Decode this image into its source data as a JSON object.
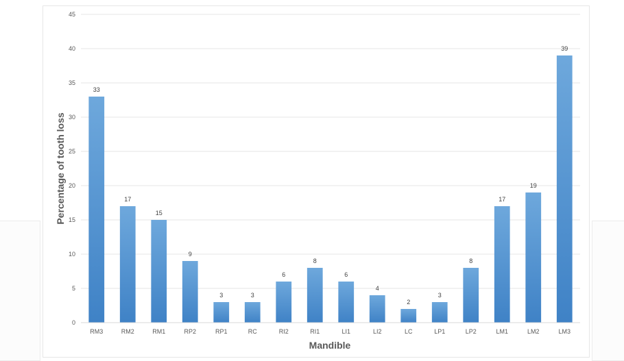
{
  "chart_data": {
    "type": "bar",
    "title": "",
    "xlabel": "Mandible",
    "ylabel": "Percentage of tooth loss",
    "ylim": [
      0,
      45
    ],
    "yticks": [
      0,
      5,
      10,
      15,
      20,
      25,
      30,
      35,
      40,
      45
    ],
    "grid": true,
    "legend": "none",
    "bar_color": "#5b9bd5",
    "categories": [
      "RM3",
      "RM2",
      "RM1",
      "RP2",
      "RP1",
      "RC",
      "RI2",
      "RI1",
      "LI1",
      "LI2",
      "LC",
      "LP1",
      "LP2",
      "LM1",
      "LM2",
      "LM3"
    ],
    "values": [
      33,
      17,
      15,
      9,
      3,
      3,
      6,
      8,
      6,
      4,
      2,
      3,
      8,
      17,
      19,
      39
    ]
  }
}
